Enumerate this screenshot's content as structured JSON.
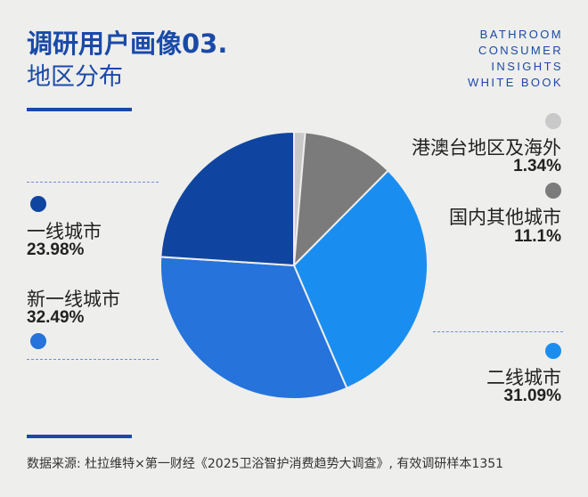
{
  "header": {
    "title": "调研用户画像03.",
    "subtitle": "地区分布",
    "brand_lines": [
      "BATHROOM",
      "CONSUMER",
      "INSIGHTS",
      "WHITE BOOK"
    ]
  },
  "chart_data": {
    "type": "pie",
    "slices": [
      {
        "name": "港澳台地区及海外",
        "value": 1.34,
        "label": "1.34%",
        "color": "#c9c9c9"
      },
      {
        "name": "国内其他城市",
        "value": 11.1,
        "label": "11.1%",
        "color": "#7b7b7b"
      },
      {
        "name": "二线城市",
        "value": 31.09,
        "label": "31.09%",
        "color": "#1a8ef0"
      },
      {
        "name": "新一线城市",
        "value": 32.49,
        "label": "32.49%",
        "color": "#2573db"
      },
      {
        "name": "一线城市",
        "value": 23.98,
        "label": "23.98%",
        "color": "#0f45a0"
      }
    ]
  },
  "footnote": "数据来源: 杜拉维特×第一财经《2025卫浴智护消费趋势大调查》, 有效调研样本1351"
}
